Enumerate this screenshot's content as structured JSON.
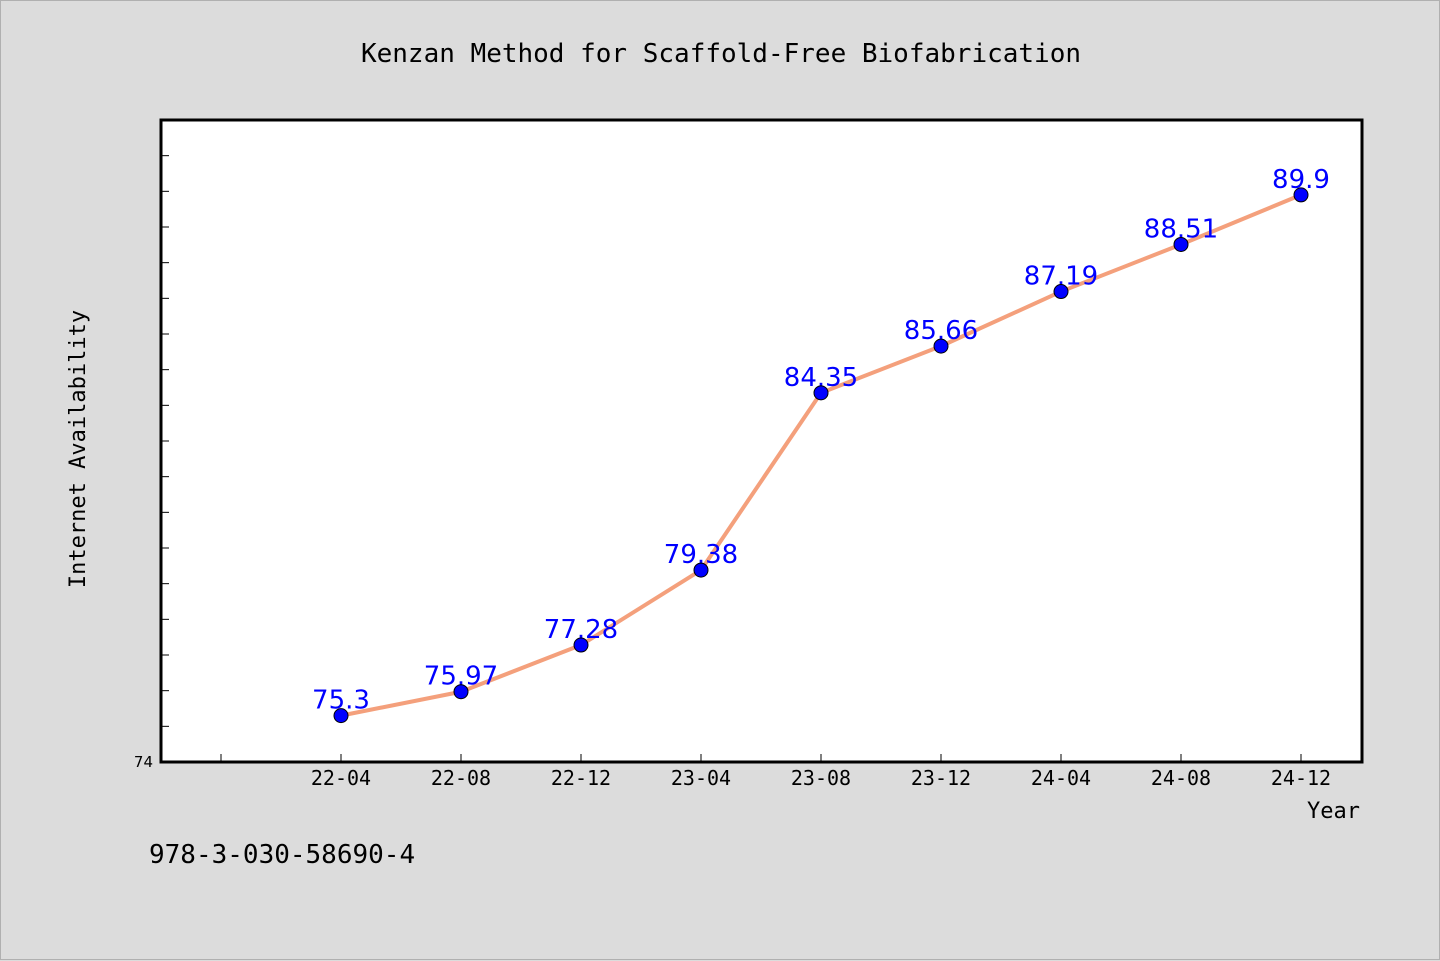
{
  "chart_data": {
    "type": "line",
    "title": "Kenzan Method for Scaffold-Free Biofabrication",
    "xlabel": "Year",
    "ylabel": "Internet Availability",
    "categories": [
      "22-04",
      "22-08",
      "22-12",
      "23-04",
      "23-08",
      "23-12",
      "24-04",
      "24-08",
      "24-12"
    ],
    "series": [
      {
        "values": [
          75.3,
          75.97,
          77.28,
          79.38,
          84.35,
          85.66,
          87.19,
          88.51,
          89.9
        ],
        "labels": [
          "75.3",
          "75.97",
          "77.28",
          "79.38",
          "84.35",
          "85.66",
          "87.19",
          "88.51",
          "89.9"
        ],
        "line_color": "#f4a07c",
        "marker_color": "#0000ff"
      }
    ],
    "ylim": [
      74,
      92
    ],
    "yticks_labeled": [
      "74"
    ],
    "grid": false,
    "legend": "none"
  },
  "footer": {
    "isbn": "978-3-030-58690-4"
  },
  "colors": {
    "background": "#dcdcdc",
    "plot_area": "#ffffff",
    "line": "#f4a07c",
    "marker": "#0000ff",
    "data_label": "#0000ff"
  }
}
